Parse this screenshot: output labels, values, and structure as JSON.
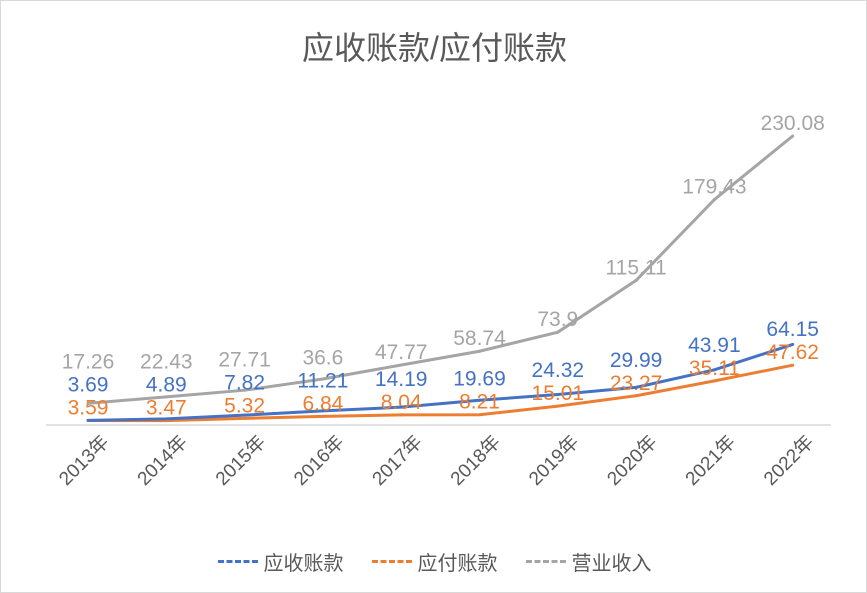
{
  "chart_data": {
    "type": "line",
    "title": "应收账款/应付账款",
    "categories": [
      "2013年",
      "2014年",
      "2015年",
      "2016年",
      "2017年",
      "2018年",
      "2019年",
      "2020年",
      "2021年",
      "2022年"
    ],
    "series": [
      {
        "name": "应收账款",
        "color": "#4472c4",
        "values": [
          3.69,
          4.89,
          7.82,
          11.21,
          14.19,
          19.69,
          24.32,
          29.99,
          43.91,
          64.15
        ]
      },
      {
        "name": "应付账款",
        "color": "#ed7d31",
        "values": [
          3.59,
          3.47,
          5.32,
          6.84,
          8.04,
          8.21,
          15.01,
          23.27,
          35.11,
          47.62
        ]
      },
      {
        "name": "营业收入",
        "color": "#a5a5a5",
        "values": [
          17.26,
          22.43,
          27.71,
          36.6,
          47.77,
          58.74,
          73.9,
          115.11,
          179.43,
          230.08
        ]
      }
    ],
    "ylim": [
      0,
      250
    ],
    "grid": false,
    "legend": "bottom",
    "data_labels": true
  }
}
